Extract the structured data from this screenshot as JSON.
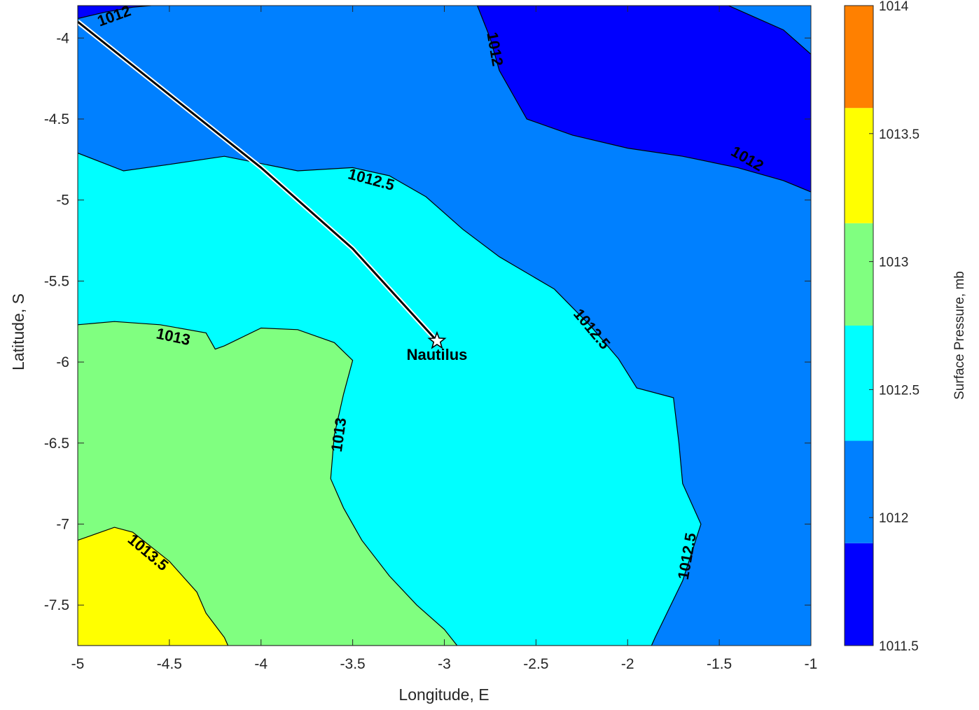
{
  "chart_data": {
    "type": "contour",
    "xlabel": "Longitude, E",
    "ylabel": "Latitude, S",
    "xlim": [
      -5,
      -1
    ],
    "ylim": [
      -7.75,
      -3.8
    ],
    "xticks": [
      -5,
      -4.5,
      -4,
      -3.5,
      -3,
      -2.5,
      -2,
      -1.5,
      -1
    ],
    "yticks": [
      -4,
      -4.5,
      -5,
      -5.5,
      -6,
      -6.5,
      -7,
      -7.5
    ],
    "x_tick_labels": [
      "-5",
      "-4.5",
      "-4",
      "-3.5",
      "-3",
      "-2.5",
      "-2",
      "-1.5",
      "-1"
    ],
    "y_tick_labels": [
      "-4",
      "-4.5",
      "-5",
      "-5.5",
      "-6",
      "-6.5",
      "-7",
      "-7.5"
    ],
    "grid": false,
    "colorbar": {
      "label": "Surface Pressure, mb",
      "range": [
        1011.5,
        1014
      ],
      "tick_values": [
        1011.5,
        1012,
        1012.5,
        1013,
        1013.5,
        1014
      ],
      "tick_labels": [
        "1011.5",
        "1012",
        "1012.5",
        "1013",
        "1013.5",
        "1014"
      ],
      "bands": [
        {
          "from": 1011.5,
          "to": 1011.9,
          "color": "#0000ff"
        },
        {
          "from": 1011.9,
          "to": 1012.3,
          "color": "#0080ff"
        },
        {
          "from": 1012.3,
          "to": 1012.75,
          "color": "#00ffff"
        },
        {
          "from": 1012.75,
          "to": 1013.15,
          "color": "#80ff80"
        },
        {
          "from": 1013.15,
          "to": 1013.6,
          "color": "#ffff00"
        },
        {
          "from": 1013.6,
          "to": 1014,
          "color": "#ff8000"
        }
      ]
    },
    "regions": [
      {
        "level": "1012.5",
        "color": "#00ffff",
        "points": [
          [
            -5,
            -4.71
          ],
          [
            -4.75,
            -4.82
          ],
          [
            -4.5,
            -4.78
          ],
          [
            -4.2,
            -4.73
          ],
          [
            -3.8,
            -4.82
          ],
          [
            -3.5,
            -4.8
          ],
          [
            -3.3,
            -4.85
          ],
          [
            -3.1,
            -4.98
          ],
          [
            -2.9,
            -5.18
          ],
          [
            -2.7,
            -5.35
          ],
          [
            -2.4,
            -5.55
          ],
          [
            -2.2,
            -5.78
          ],
          [
            -2.05,
            -5.98
          ],
          [
            -1.95,
            -6.16
          ],
          [
            -1.75,
            -6.22
          ],
          [
            -1.72,
            -6.5
          ],
          [
            -1.7,
            -6.75
          ],
          [
            -1.6,
            -7.0
          ],
          [
            -1.7,
            -7.35
          ],
          [
            -1.85,
            -7.7
          ],
          [
            -1.87,
            -7.75
          ],
          [
            -5,
            -7.75
          ]
        ]
      },
      {
        "level": "1013",
        "color": "#80ff80",
        "points": [
          [
            -5,
            -5.77
          ],
          [
            -4.8,
            -5.75
          ],
          [
            -4.55,
            -5.77
          ],
          [
            -4.3,
            -5.82
          ],
          [
            -4.25,
            -5.92
          ],
          [
            -4.2,
            -5.9
          ],
          [
            -4.0,
            -5.79
          ],
          [
            -3.8,
            -5.8
          ],
          [
            -3.6,
            -5.88
          ],
          [
            -3.5,
            -5.99
          ],
          [
            -3.55,
            -6.2
          ],
          [
            -3.6,
            -6.45
          ],
          [
            -3.62,
            -6.72
          ],
          [
            -3.55,
            -6.9
          ],
          [
            -3.45,
            -7.1
          ],
          [
            -3.3,
            -7.32
          ],
          [
            -3.15,
            -7.5
          ],
          [
            -3.0,
            -7.65
          ],
          [
            -2.93,
            -7.75
          ],
          [
            -5,
            -7.75
          ]
        ]
      },
      {
        "level": "1013.5",
        "color": "#ffff00",
        "points": [
          [
            -5,
            -7.1
          ],
          [
            -4.8,
            -7.02
          ],
          [
            -4.7,
            -7.05
          ],
          [
            -4.5,
            -7.23
          ],
          [
            -4.35,
            -7.42
          ],
          [
            -4.3,
            -7.55
          ],
          [
            -4.2,
            -7.7
          ],
          [
            -4.18,
            -7.75
          ],
          [
            -5,
            -7.75
          ]
        ]
      },
      {
        "level": "1012",
        "color": "#0000ff",
        "points": [
          [
            -5,
            -3.88
          ],
          [
            -4.85,
            -3.84
          ],
          [
            -4.7,
            -3.81
          ],
          [
            -4.6,
            -3.8
          ],
          [
            -5,
            -3.8
          ]
        ]
      },
      {
        "level": "1012",
        "color": "#0000ff",
        "points": [
          [
            -2.82,
            -3.8
          ],
          [
            -2.75,
            -4.0
          ],
          [
            -2.7,
            -4.2
          ],
          [
            -2.55,
            -4.5
          ],
          [
            -2.3,
            -4.6
          ],
          [
            -2.0,
            -4.68
          ],
          [
            -1.7,
            -4.73
          ],
          [
            -1.4,
            -4.8
          ],
          [
            -1.15,
            -4.88
          ],
          [
            -1.0,
            -4.95
          ],
          [
            -1,
            -4.1
          ],
          [
            -1.15,
            -3.95
          ],
          [
            -1.35,
            -3.85
          ],
          [
            -1.45,
            -3.8
          ]
        ]
      }
    ],
    "contour_labels": [
      {
        "text": "1012",
        "x": -4.8,
        "y": -3.87,
        "angle": -20
      },
      {
        "text": "1012",
        "x": -2.73,
        "y": -4.07,
        "angle": 80
      },
      {
        "text": "1012",
        "x": -1.35,
        "y": -4.75,
        "angle": 30
      },
      {
        "text": "1012.5",
        "x": -3.4,
        "y": -4.88,
        "angle": 15
      },
      {
        "text": "1012.5",
        "x": -2.2,
        "y": -5.8,
        "angle": 50
      },
      {
        "text": "1012.5",
        "x": -1.67,
        "y": -7.2,
        "angle": -80
      },
      {
        "text": "1013",
        "x": -4.48,
        "y": -5.85,
        "angle": 12
      },
      {
        "text": "1013",
        "x": -3.57,
        "y": -6.45,
        "angle": -82
      },
      {
        "text": "1013.5",
        "x": -4.62,
        "y": -7.18,
        "angle": 40
      }
    ],
    "track": {
      "points": [
        [
          -5,
          -3.9
        ],
        [
          -4.5,
          -4.35
        ],
        [
          -4.0,
          -4.8
        ],
        [
          -3.5,
          -5.3
        ],
        [
          -3.04,
          -5.87
        ]
      ]
    },
    "marker": {
      "label": "Nautilus",
      "x": -3.04,
      "y": -5.87
    }
  }
}
